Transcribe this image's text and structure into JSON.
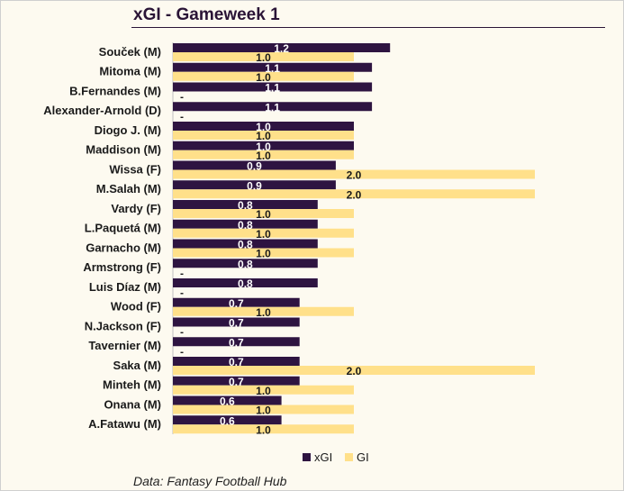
{
  "chart_data": {
    "type": "bar",
    "orientation": "horizontal",
    "title": "xGI - Gameweek 1",
    "categories": [
      "Souček (M)",
      "Mitoma (M)",
      "B.Fernandes (M)",
      "Alexander-Arnold (D)",
      "Diogo J. (M)",
      "Maddison (M)",
      "Wissa (F)",
      "M.Salah (M)",
      "Vardy (F)",
      "L.Paquetá (M)",
      "Garnacho (M)",
      "Armstrong (F)",
      "Luis Díaz (M)",
      "Wood (F)",
      "N.Jackson (F)",
      "Tavernier (M)",
      "Saka (M)",
      "Minteh (M)",
      "Onana (M)",
      "A.Fatawu (M)"
    ],
    "series": [
      {
        "name": "xGI",
        "color": "#2e1441",
        "values": [
          1.2,
          1.1,
          1.1,
          1.1,
          1.0,
          1.0,
          0.9,
          0.9,
          0.8,
          0.8,
          0.8,
          0.8,
          0.8,
          0.7,
          0.7,
          0.7,
          0.7,
          0.7,
          0.6,
          0.6
        ],
        "labels": [
          "1.2",
          "1.1",
          "1.1",
          "1.1",
          "1.0",
          "1.0",
          "0.9",
          "0.9",
          "0.8",
          "0.8",
          "0.8",
          "0.8",
          "0.8",
          "0.7",
          "0.7",
          "0.7",
          "0.7",
          "0.7",
          "0.6",
          "0.6"
        ]
      },
      {
        "name": "GI",
        "color": "#ffe08a",
        "values": [
          1.0,
          1.0,
          0,
          0,
          1.0,
          1.0,
          2.0,
          2.0,
          1.0,
          1.0,
          1.0,
          0,
          0,
          1.0,
          0,
          0,
          2.0,
          1.0,
          1.0,
          1.0
        ],
        "labels": [
          "1.0",
          "1.0",
          "-",
          "-",
          "1.0",
          "1.0",
          "2.0",
          "2.0",
          "1.0",
          "1.0",
          "1.0",
          "-",
          "-",
          "1.0",
          "-",
          "-",
          "2.0",
          "1.0",
          "1.0",
          "1.0"
        ]
      }
    ],
    "xlim": [
      0,
      2.0
    ],
    "grid": false,
    "legend": "bottom"
  },
  "source": "Data: Fantasy Football Hub"
}
